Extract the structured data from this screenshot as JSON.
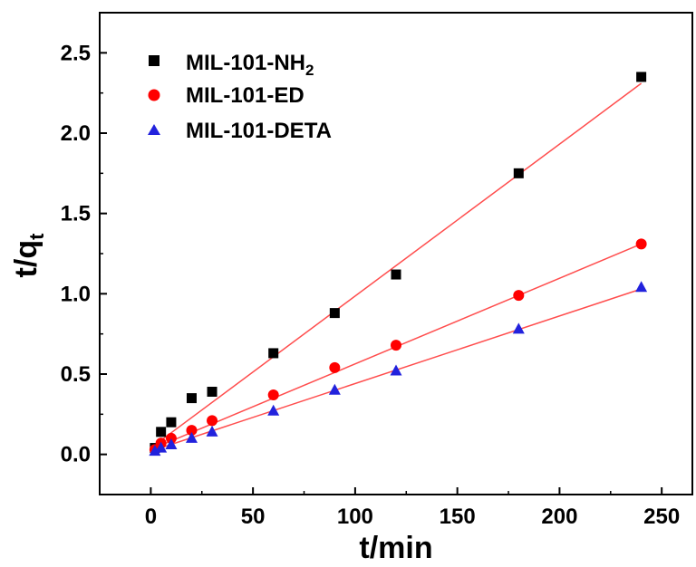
{
  "chart_data": {
    "type": "scatter",
    "xlabel": "t/min",
    "ylabel_main": "t/q",
    "ylabel_sub": "t",
    "xlim": [
      -25,
      265
    ],
    "ylim": [
      -0.25,
      2.75
    ],
    "xticks": [
      0,
      50,
      100,
      150,
      200,
      250
    ],
    "xtick_labels": [
      "0",
      "50",
      "100",
      "150",
      "200",
      "250"
    ],
    "yticks": [
      0.0,
      0.5,
      1.0,
      1.5,
      2.0,
      2.5
    ],
    "ytick_labels": [
      "0.0",
      "0.5",
      "1.0",
      "1.5",
      "2.0",
      "2.5"
    ],
    "legend_position": "top-left",
    "fit_line_color": "#ff4d4d",
    "series": [
      {
        "name": "MIL-101-NH",
        "name_sub": "2",
        "marker": "square",
        "color": "#000000",
        "x": [
          2,
          5,
          10,
          20,
          30,
          60,
          90,
          120,
          180,
          240
        ],
        "y": [
          0.04,
          0.14,
          0.2,
          0.35,
          0.39,
          0.63,
          0.88,
          1.12,
          1.75,
          2.35
        ],
        "fit": [
          [
            0,
            0.04
          ],
          [
            240,
            2.31
          ]
        ]
      },
      {
        "name": "MIL-101-ED",
        "marker": "circle",
        "color": "#ff0000",
        "x": [
          2,
          5,
          10,
          20,
          30,
          60,
          90,
          120,
          180,
          240
        ],
        "y": [
          0.03,
          0.07,
          0.1,
          0.15,
          0.21,
          0.37,
          0.54,
          0.68,
          0.99,
          1.31
        ],
        "fit": [
          [
            0,
            0.03
          ],
          [
            240,
            1.31
          ]
        ]
      },
      {
        "name": "MIL-101-DETA",
        "marker": "triangle",
        "color": "#2222dd",
        "x": [
          2,
          5,
          10,
          20,
          30,
          60,
          90,
          120,
          180,
          240
        ],
        "y": [
          0.02,
          0.04,
          0.06,
          0.1,
          0.14,
          0.27,
          0.4,
          0.52,
          0.78,
          1.04
        ],
        "fit": [
          [
            0,
            0.02
          ],
          [
            240,
            1.03
          ]
        ]
      }
    ]
  }
}
